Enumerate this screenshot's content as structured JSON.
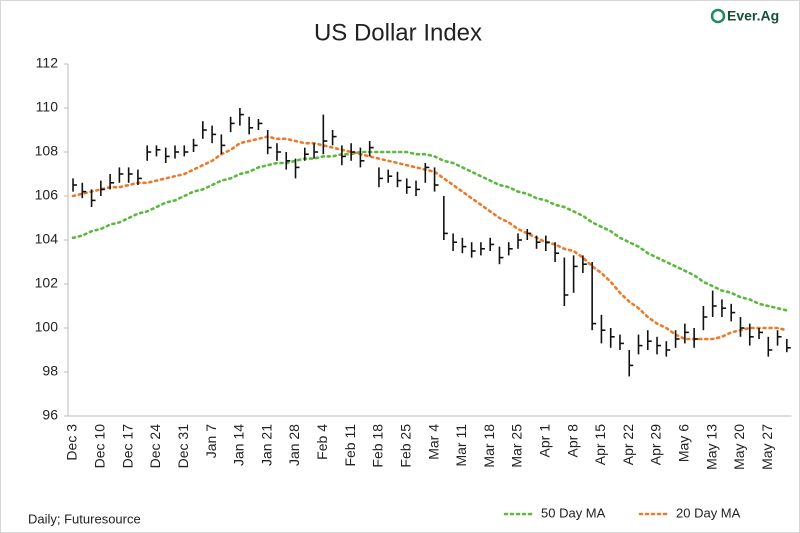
{
  "chart_data": {
    "type": "ohlc",
    "title": "US Dollar Index",
    "logo": "Ever.Ag",
    "footnote": "Daily; Futuresource",
    "categories": [
      "Dec 3",
      null,
      null,
      "Dec 10",
      null,
      null,
      "Dec 17",
      null,
      null,
      "Dec 24",
      null,
      null,
      "Dec 31",
      null,
      null,
      "Jan 7",
      null,
      null,
      "Jan 14",
      null,
      null,
      "Jan 21",
      null,
      null,
      "Jan 28",
      null,
      null,
      "Feb 4",
      null,
      null,
      "Feb 11",
      null,
      null,
      "Feb 18",
      null,
      null,
      "Feb 25",
      null,
      null,
      "Mar 4",
      null,
      null,
      "Mar 11",
      null,
      null,
      "Mar 18",
      null,
      null,
      "Mar 25",
      null,
      null,
      "Apr 1",
      null,
      null,
      "Apr 8",
      null,
      null,
      "Apr 15",
      null,
      null,
      "Apr 22",
      null,
      null,
      "Apr 29",
      null,
      null,
      "May 6",
      null,
      null,
      "May 13",
      null,
      null,
      "May 20",
      null,
      null,
      "May 27",
      null,
      null
    ],
    "bars": {
      "color": "#111111",
      "high": [
        106.8,
        106.6,
        106.3,
        106.7,
        107.0,
        107.3,
        107.3,
        107.2,
        108.3,
        108.3,
        108.2,
        108.3,
        108.3,
        108.6,
        109.4,
        109.2,
        108.8,
        109.6,
        110.0,
        109.6,
        109.5,
        109.0,
        108.4,
        108.0,
        107.7,
        108.2,
        108.4,
        109.7,
        109.0,
        108.3,
        108.4,
        108.2,
        108.5,
        107.3,
        107.2,
        107.1,
        106.8,
        106.7,
        107.5,
        107.3,
        106.0,
        104.3,
        104.1,
        103.9,
        103.9,
        104.1,
        103.7,
        103.9,
        104.3,
        104.5,
        104.2,
        104.2,
        103.9,
        103.2,
        103.3,
        103.3,
        103.0,
        100.6,
        100.0,
        99.7,
        99.0,
        99.7,
        99.9,
        99.6,
        99.4,
        99.9,
        100.2,
        100.0,
        101.0,
        101.7,
        101.3,
        101.1,
        100.5,
        100.2,
        100.0,
        99.6,
        99.9,
        99.5
      ],
      "low": [
        106.2,
        105.9,
        105.5,
        106.0,
        106.3,
        106.6,
        106.6,
        106.5,
        107.6,
        107.8,
        107.5,
        107.7,
        107.8,
        108.0,
        108.6,
        108.4,
        107.9,
        108.9,
        109.2,
        108.8,
        109.0,
        107.9,
        107.6,
        107.2,
        106.8,
        107.6,
        107.7,
        107.9,
        108.3,
        107.4,
        107.6,
        107.3,
        107.8,
        106.4,
        106.6,
        106.4,
        106.1,
        106.0,
        106.6,
        106.2,
        104.0,
        103.5,
        103.4,
        103.2,
        103.3,
        103.5,
        102.9,
        103.3,
        103.6,
        104.0,
        103.6,
        103.5,
        103.0,
        101.0,
        101.6,
        102.5,
        99.9,
        99.3,
        99.1,
        99.0,
        97.8,
        98.8,
        99.0,
        98.8,
        98.7,
        99.1,
        99.3,
        99.1,
        99.9,
        100.5,
        100.5,
        100.3,
        99.6,
        99.2,
        99.5,
        98.7,
        99.2,
        98.9
      ],
      "close": [
        106.5,
        106.2,
        105.8,
        106.3,
        106.6,
        107.0,
        107.0,
        106.8,
        108.0,
        108.1,
        107.8,
        108.0,
        108.0,
        108.3,
        109.0,
        108.8,
        108.3,
        109.3,
        109.7,
        109.1,
        109.3,
        108.2,
        108.0,
        107.6,
        107.3,
        107.9,
        108.0,
        108.5,
        108.7,
        107.8,
        108.0,
        107.6,
        108.2,
        106.8,
        106.9,
        106.7,
        106.4,
        106.3,
        107.3,
        106.5,
        104.3,
        103.9,
        103.7,
        103.5,
        103.6,
        103.8,
        103.2,
        103.6,
        104.0,
        104.3,
        103.9,
        103.9,
        103.4,
        101.5,
        102.8,
        102.9,
        100.2,
        99.9,
        99.6,
        99.3,
        98.3,
        99.2,
        99.4,
        99.2,
        99.0,
        99.5,
        99.8,
        99.5,
        100.5,
        101.0,
        100.9,
        100.7,
        100.0,
        99.6,
        99.8,
        99.0,
        99.6,
        99.1
      ]
    },
    "series": [
      {
        "name": "50 Day MA",
        "color": "#5cb83f",
        "values": [
          104.1,
          104.2,
          104.4,
          104.5,
          104.7,
          104.8,
          105.0,
          105.2,
          105.3,
          105.5,
          105.7,
          105.8,
          106.0,
          106.2,
          106.3,
          106.5,
          106.7,
          106.8,
          107.0,
          107.1,
          107.3,
          107.4,
          107.5,
          107.5,
          107.6,
          107.7,
          107.7,
          107.8,
          107.8,
          107.9,
          107.9,
          108.0,
          108.0,
          108.0,
          108.0,
          108.0,
          108.0,
          107.9,
          107.9,
          107.8,
          107.6,
          107.5,
          107.3,
          107.1,
          106.9,
          106.7,
          106.5,
          106.4,
          106.2,
          106.1,
          105.9,
          105.8,
          105.6,
          105.5,
          105.3,
          105.1,
          104.8,
          104.6,
          104.4,
          104.1,
          103.9,
          103.7,
          103.4,
          103.2,
          103.0,
          102.8,
          102.6,
          102.4,
          102.1,
          101.9,
          101.7,
          101.6,
          101.4,
          101.3,
          101.1,
          101.0,
          100.9,
          100.8
        ]
      },
      {
        "name": "20 Day MA",
        "color": "#ec7a2b",
        "values": [
          106.0,
          106.1,
          106.2,
          106.3,
          106.4,
          106.4,
          106.5,
          106.6,
          106.6,
          106.7,
          106.8,
          106.9,
          107.0,
          107.2,
          107.4,
          107.6,
          107.9,
          108.1,
          108.4,
          108.5,
          108.6,
          108.7,
          108.6,
          108.6,
          108.5,
          108.4,
          108.4,
          108.3,
          108.2,
          108.1,
          108.0,
          107.9,
          107.8,
          107.7,
          107.6,
          107.5,
          107.4,
          107.3,
          107.2,
          107.1,
          106.8,
          106.5,
          106.2,
          105.9,
          105.6,
          105.3,
          105.0,
          104.8,
          104.5,
          104.3,
          104.1,
          103.9,
          103.8,
          103.6,
          103.5,
          103.2,
          102.8,
          102.5,
          102.1,
          101.6,
          101.2,
          100.9,
          100.5,
          100.2,
          100.0,
          99.7,
          99.5,
          99.5,
          99.5,
          99.5,
          99.6,
          99.8,
          99.9,
          100.0,
          100.0,
          100.0,
          100.0,
          99.9
        ]
      }
    ],
    "line_style": "dotted",
    "ylim": [
      96,
      112
    ],
    "yticks": [
      96,
      98,
      100,
      102,
      104,
      106,
      108,
      110,
      112
    ],
    "grid": false,
    "legend": "bottom-right"
  }
}
